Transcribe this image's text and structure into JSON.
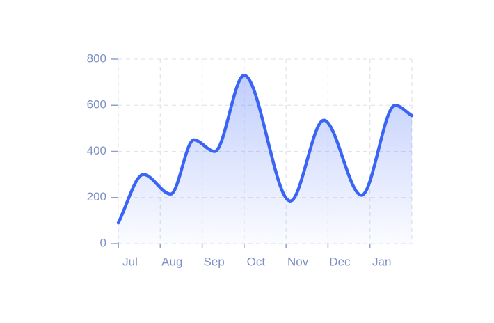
{
  "chart_data": {
    "type": "area",
    "x": [
      0,
      0.6,
      1.25,
      1.8,
      2.3,
      3.0,
      4.1,
      4.9,
      5.8,
      6.6,
      7.0
    ],
    "values": [
      90,
      300,
      215,
      450,
      400,
      730,
      185,
      535,
      210,
      600,
      555
    ],
    "color": "#3a64f4",
    "xlim": [
      0,
      7
    ],
    "xticks": [
      {
        "value": 0,
        "label": "Jul"
      },
      {
        "value": 1,
        "label": "Aug"
      },
      {
        "value": 2,
        "label": "Sep"
      },
      {
        "value": 3,
        "label": "Oct"
      },
      {
        "value": 4,
        "label": "Nov"
      },
      {
        "value": 5,
        "label": "Dec"
      },
      {
        "value": 6,
        "label": "Jan"
      }
    ],
    "ylim": [
      0,
      800
    ],
    "yticks": [
      0,
      200,
      400,
      600,
      800
    ],
    "grid": true
  }
}
